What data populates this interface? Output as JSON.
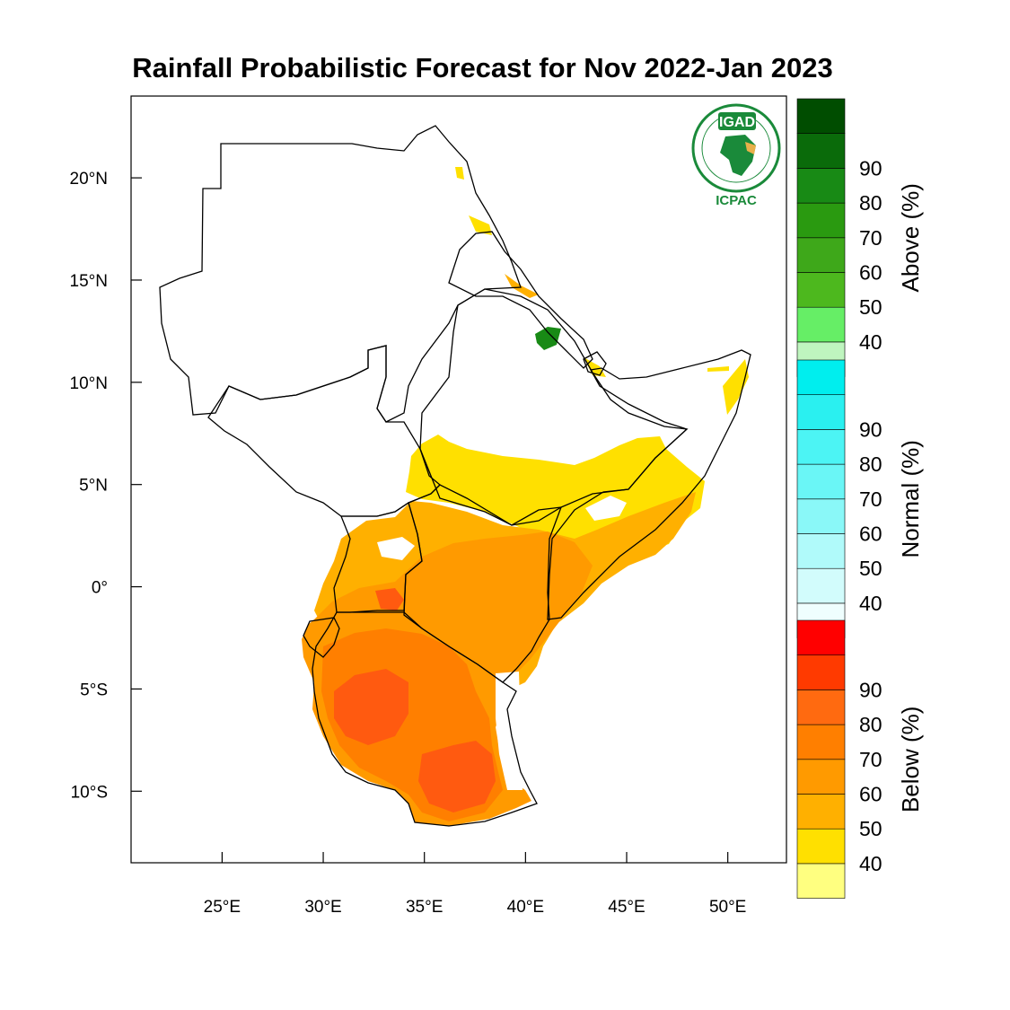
{
  "title": "Rainfall Probabilistic Forecast for Nov 2022-Jan 2023",
  "map": {
    "lon_range": [
      20.5,
      52.9
    ],
    "lat_range": [
      -13.5,
      24
    ],
    "lon_ticks": [
      {
        "value": 25,
        "label": "25°E"
      },
      {
        "value": 30,
        "label": "30°E"
      },
      {
        "value": 35,
        "label": "35°E"
      },
      {
        "value": 40,
        "label": "40°E"
      },
      {
        "value": 45,
        "label": "45°E"
      },
      {
        "value": 50,
        "label": "50°E"
      }
    ],
    "lat_ticks": [
      {
        "value": 20,
        "label": "20°N"
      },
      {
        "value": 15,
        "label": "15°N"
      },
      {
        "value": 10,
        "label": "10°N"
      },
      {
        "value": 5,
        "label": "5°N"
      },
      {
        "value": 0,
        "label": "0°"
      },
      {
        "value": -5,
        "label": "5°S"
      },
      {
        "value": -10,
        "label": "10°S"
      }
    ]
  },
  "logo": {
    "top_text": "IGAD",
    "bottom_text": "ICPAC"
  },
  "colorbars": [
    {
      "name": "above",
      "title": "Above (%)",
      "labels": [
        "40",
        "50",
        "60",
        "70",
        "80",
        "90"
      ],
      "colors": [
        "#bff5bf",
        "#66ee66",
        "#4db81e",
        "#3ea81a",
        "#2a9a10",
        "#188a15",
        "#0a6b0a",
        "#004d00"
      ]
    },
    {
      "name": "normal",
      "title": "Normal (%)",
      "labels": [
        "40",
        "50",
        "60",
        "70",
        "80",
        "90"
      ],
      "colors": [
        "#effefe",
        "#d2fcfc",
        "#b0fafa",
        "#8af8f8",
        "#6af6f6",
        "#4cf4f4",
        "#2af0f0",
        "#00eeee"
      ]
    },
    {
      "name": "below",
      "title": "Below (%)",
      "labels": [
        "40",
        "50",
        "60",
        "70",
        "80",
        "90"
      ],
      "colors": [
        "#ffff80",
        "#ffe000",
        "#ffb000",
        "#ff9a00",
        "#ff7f00",
        "#ff6a10",
        "#ff3a00",
        "#ff0000"
      ]
    }
  ],
  "colors": {
    "p40": "#ffe000",
    "p50": "#ffb000",
    "p60": "#ff9a00",
    "p70": "#ff7f00",
    "p80": "#ff5a10",
    "above_dark": "#188a15",
    "logo_green": "#1a8a3a"
  }
}
